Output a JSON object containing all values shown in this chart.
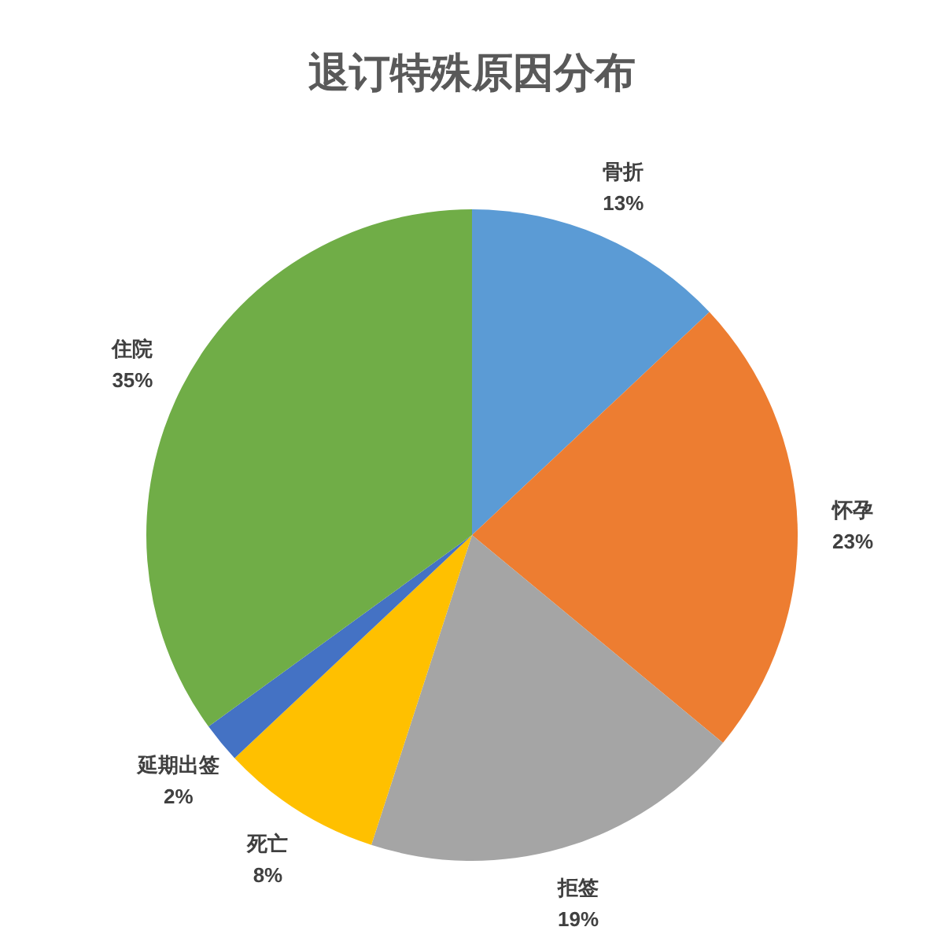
{
  "chart_data": {
    "type": "pie",
    "title": "退订特殊原因分布",
    "categories": [
      "骨折",
      "怀孕",
      "拒签",
      "死亡",
      "延期出签",
      "住院"
    ],
    "values": [
      13,
      23,
      19,
      8,
      2,
      35
    ],
    "value_labels": [
      "13%",
      "23%",
      "19%",
      "8%",
      "2%",
      "35%"
    ],
    "colors": [
      "#5b9bd5",
      "#ed7d31",
      "#a5a5a5",
      "#ffc000",
      "#4472c4",
      "#70ad47"
    ],
    "legend": false
  }
}
